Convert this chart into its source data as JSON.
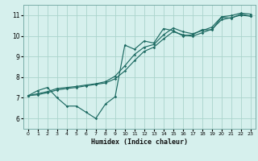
{
  "xlabel": "Humidex (Indice chaleur)",
  "bg_color": "#d6f0ed",
  "line_color": "#1e6b63",
  "grid_color": "#aad4cc",
  "xlim": [
    -0.5,
    23.5
  ],
  "ylim": [
    5.5,
    11.5
  ],
  "xticks": [
    0,
    1,
    2,
    3,
    4,
    5,
    6,
    7,
    8,
    9,
    10,
    11,
    12,
    13,
    14,
    15,
    16,
    17,
    18,
    19,
    20,
    21,
    22,
    23
  ],
  "yticks": [
    6,
    7,
    8,
    9,
    10,
    11
  ],
  "line1_x": [
    0,
    1,
    2,
    3,
    4,
    5,
    6,
    7,
    8,
    9,
    10,
    11,
    12,
    13,
    14,
    15,
    16,
    17,
    18,
    19,
    20,
    21,
    22,
    23
  ],
  "line1_y": [
    7.1,
    7.35,
    7.5,
    7.0,
    6.6,
    6.6,
    6.3,
    6.0,
    6.7,
    7.05,
    9.55,
    9.35,
    9.75,
    9.65,
    10.35,
    10.25,
    10.0,
    10.05,
    10.3,
    10.28,
    10.9,
    10.85,
    11.05,
    10.95
  ],
  "line2_x": [
    0,
    1,
    2,
    3,
    4,
    5,
    6,
    7,
    8,
    9,
    10,
    11,
    12,
    13,
    14,
    15,
    16,
    17,
    18,
    19,
    20,
    21,
    22,
    23
  ],
  "line2_y": [
    7.1,
    7.2,
    7.3,
    7.45,
    7.5,
    7.55,
    7.62,
    7.68,
    7.78,
    8.05,
    8.55,
    9.1,
    9.45,
    9.58,
    10.05,
    10.38,
    10.2,
    10.1,
    10.25,
    10.42,
    10.92,
    10.98,
    11.1,
    11.05
  ],
  "line3_x": [
    0,
    1,
    2,
    3,
    4,
    5,
    6,
    7,
    8,
    9,
    10,
    11,
    12,
    13,
    14,
    15,
    16,
    17,
    18,
    19,
    20,
    21,
    22,
    23
  ],
  "line3_y": [
    7.1,
    7.15,
    7.25,
    7.38,
    7.45,
    7.5,
    7.58,
    7.65,
    7.72,
    7.92,
    8.3,
    8.8,
    9.25,
    9.45,
    9.85,
    10.2,
    10.05,
    9.98,
    10.15,
    10.32,
    10.78,
    10.88,
    11.0,
    10.95
  ]
}
